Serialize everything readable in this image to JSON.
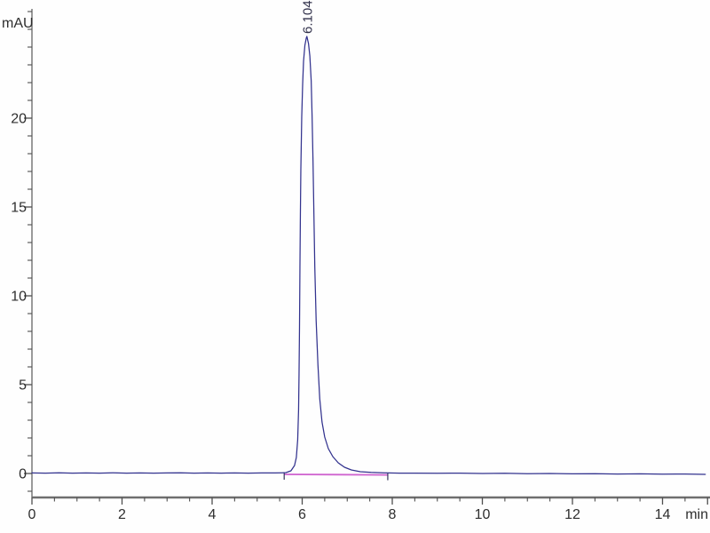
{
  "labels": {
    "y_unit": "mAU",
    "x_unit": "min",
    "peak_label": "6.104"
  },
  "colors": {
    "background": "#fefefe",
    "axis": "#6f6f6f",
    "tick": "#4f4f4f",
    "trace_blue": "#32328e",
    "integration_magenta": "#cf63cf",
    "integration_marker": "#34345e"
  },
  "chart_data": {
    "type": "line",
    "title": "",
    "xlabel": "min",
    "ylabel": "mAU",
    "xlim": [
      0,
      15.05
    ],
    "ylim": [
      -1.35,
      26.15
    ],
    "grid": false,
    "legend": "none",
    "x_major_ticks": [
      0,
      2,
      4,
      6,
      8,
      10,
      12,
      14
    ],
    "x_unlabeled_major_ticks": [
      15
    ],
    "x_minor_tick_step": 0.5,
    "y_major_ticks": [
      0,
      5,
      10,
      15,
      20
    ],
    "y_minor_tick_step": 1,
    "peaks": [
      {
        "retention_time_label": "6.104",
        "retention_time_min": 6.104,
        "height_mau": 24.6,
        "integration_start_min": 5.6,
        "integration_end_min": 7.9
      }
    ],
    "series": [
      {
        "name": "detector-signal",
        "color": "#32328e",
        "points": [
          [
            0,
            0.03
          ],
          [
            0.3,
            0.02
          ],
          [
            0.6,
            0.04
          ],
          [
            0.9,
            0.02
          ],
          [
            1.2,
            0.03
          ],
          [
            1.5,
            0.02
          ],
          [
            1.8,
            0.04
          ],
          [
            2.1,
            0.02
          ],
          [
            2.4,
            0.03
          ],
          [
            2.7,
            0.02
          ],
          [
            3.0,
            0.03
          ],
          [
            3.3,
            0.04
          ],
          [
            3.6,
            0.02
          ],
          [
            3.9,
            0.03
          ],
          [
            4.2,
            0.02
          ],
          [
            4.5,
            0.03
          ],
          [
            4.8,
            0.02
          ],
          [
            5.1,
            0.03
          ],
          [
            5.4,
            0.03
          ],
          [
            5.55,
            0.04
          ],
          [
            5.64,
            0.05
          ],
          [
            5.75,
            0.15
          ],
          [
            5.83,
            0.45
          ],
          [
            5.87,
            0.9
          ],
          [
            5.9,
            1.9
          ],
          [
            5.92,
            3.6
          ],
          [
            5.93,
            5.6
          ],
          [
            5.94,
            8.1
          ],
          [
            5.95,
            11.6
          ],
          [
            5.96,
            14.6
          ],
          [
            5.97,
            17.1
          ],
          [
            5.99,
            20.1
          ],
          [
            6.01,
            21.9
          ],
          [
            6.03,
            23.2
          ],
          [
            6.06,
            24.1
          ],
          [
            6.09,
            24.5
          ],
          [
            6.104,
            24.6
          ],
          [
            6.14,
            24.2
          ],
          [
            6.17,
            23.5
          ],
          [
            6.2,
            22.1
          ],
          [
            6.22,
            20.1
          ],
          [
            6.24,
            17.6
          ],
          [
            6.26,
            14.6
          ],
          [
            6.28,
            11.6
          ],
          [
            6.31,
            8.6
          ],
          [
            6.35,
            6.1
          ],
          [
            6.39,
            4.2
          ],
          [
            6.44,
            2.9
          ],
          [
            6.5,
            2.05
          ],
          [
            6.58,
            1.4
          ],
          [
            6.68,
            0.95
          ],
          [
            6.8,
            0.6
          ],
          [
            6.94,
            0.35
          ],
          [
            7.09,
            0.2
          ],
          [
            7.29,
            0.1
          ],
          [
            7.53,
            0.06
          ],
          [
            7.8,
            0.04
          ],
          [
            8.16,
            0.02
          ],
          [
            8.5,
            0.02
          ],
          [
            9.0,
            0.01
          ],
          [
            9.5,
            0.02
          ],
          [
            10.0,
            0.0
          ],
          [
            10.5,
            0.01
          ],
          [
            11.0,
            -0.01
          ],
          [
            11.5,
            0.0
          ],
          [
            12.0,
            -0.02
          ],
          [
            12.5,
            -0.01
          ],
          [
            13.0,
            -0.03
          ],
          [
            13.5,
            -0.02
          ],
          [
            14.0,
            -0.04
          ],
          [
            14.5,
            -0.03
          ],
          [
            14.95,
            -0.05
          ]
        ]
      },
      {
        "name": "integration-baseline",
        "color": "#cf63cf",
        "points": [
          [
            5.6,
            -0.05
          ],
          [
            7.9,
            -0.08
          ]
        ],
        "end_markers": true
      }
    ]
  }
}
